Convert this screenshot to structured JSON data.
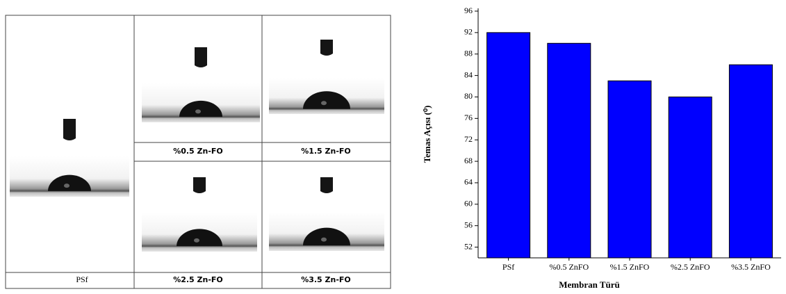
{
  "panel": {
    "captions": [
      "PSf",
      "%0.5 Zn-FO",
      "%1.5 Zn-FO",
      "%2.5 Zn-FO",
      "%3.5 Zn-FO"
    ]
  },
  "chart_data": {
    "type": "bar",
    "x_label": "Membran Türü",
    "y_label": "Temas Açısı (⁰)",
    "categories": [
      "PSf",
      "%0.5 ZnFO",
      "%1.5 ZnFO",
      "%2.5 ZnFO",
      "%3.5 ZnFO"
    ],
    "values": [
      92,
      90,
      83,
      80,
      86
    ],
    "color": "#0000ff",
    "ylim": [
      50,
      96
    ],
    "yticks": [
      52,
      56,
      60,
      64,
      68,
      72,
      76,
      80,
      84,
      88,
      92,
      96
    ]
  }
}
